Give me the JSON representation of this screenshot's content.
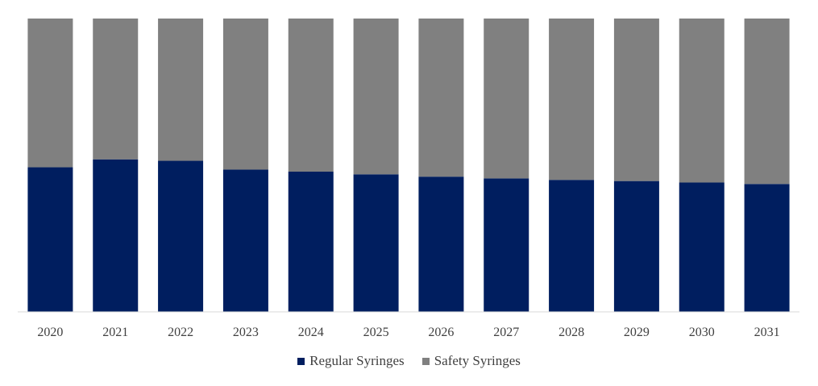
{
  "chart_data": {
    "type": "bar",
    "stacked": true,
    "percent": true,
    "categories": [
      "2020",
      "2021",
      "2022",
      "2023",
      "2024",
      "2025",
      "2026",
      "2027",
      "2028",
      "2029",
      "2030",
      "2031"
    ],
    "ylim": [
      0,
      100
    ],
    "grid": false,
    "legend_position": "bottom",
    "series": [
      {
        "name": "Regular Syringes",
        "color": "#001e5f",
        "values": [
          49.3,
          52.0,
          51.5,
          48.5,
          47.8,
          46.9,
          46.1,
          45.5,
          45.0,
          44.6,
          44.1,
          43.6
        ]
      },
      {
        "name": "Safety Syringes",
        "color": "#808080",
        "values": [
          50.7,
          48.0,
          48.5,
          51.5,
          52.2,
          53.1,
          53.9,
          54.5,
          55.0,
          55.4,
          55.9,
          56.4
        ]
      }
    ]
  }
}
